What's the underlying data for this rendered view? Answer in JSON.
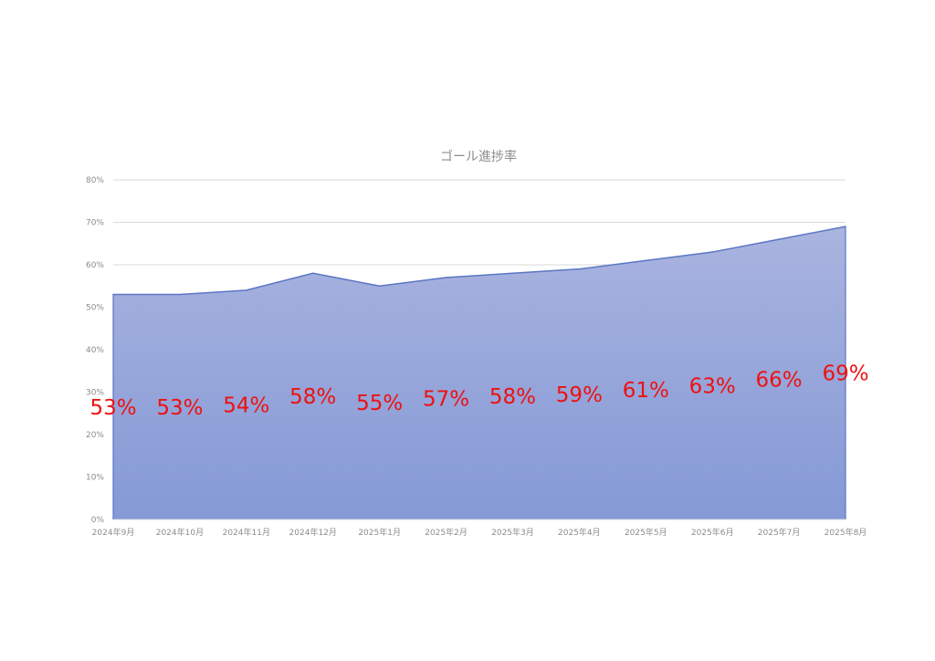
{
  "chart_data": {
    "type": "area",
    "title": "ゴール進捗率",
    "categories": [
      "2024年9月",
      "2024年10月",
      "2024年11月",
      "2024年12月",
      "2025年1月",
      "2025年2月",
      "2025年3月",
      "2025年4月",
      "2025年5月",
      "2025年6月",
      "2025年7月",
      "2025年8月"
    ],
    "values": [
      53,
      53,
      54,
      58,
      55,
      57,
      58,
      59,
      61,
      63,
      66,
      69
    ],
    "data_labels": [
      "53%",
      "53%",
      "54%",
      "58%",
      "55%",
      "57%",
      "58%",
      "59%",
      "61%",
      "63%",
      "66%",
      "69%"
    ],
    "y_ticks": [
      "0%",
      "10%",
      "20%",
      "30%",
      "40%",
      "50%",
      "60%",
      "70%",
      "80%"
    ],
    "ylim": [
      0,
      80
    ],
    "xlabel": "",
    "ylabel": "",
    "grid": true,
    "legend": "none",
    "colors": {
      "area_top": "#aab4df",
      "area_bottom": "#8499d6",
      "line": "#5b76c4",
      "data_label": "#ee1111",
      "grid": "#d9d9d9",
      "text": "#8c8c8c"
    }
  }
}
